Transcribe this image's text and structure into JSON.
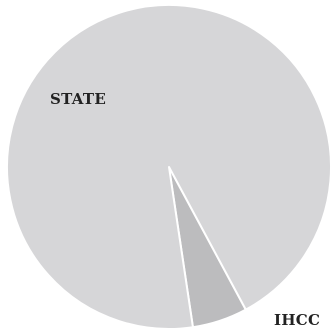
{
  "chart_data": {
    "type": "pie",
    "categories": [
      "STATE",
      "IHCC"
    ],
    "values": [
      94.5,
      5.5
    ],
    "title": "",
    "legend": "none",
    "colors": {
      "STATE": "#d6d6d8",
      "IHCC": "#bcbcbe",
      "separator": "#ffffff"
    },
    "labels": {
      "state": "STATE",
      "ihcc": "IHCC"
    }
  }
}
